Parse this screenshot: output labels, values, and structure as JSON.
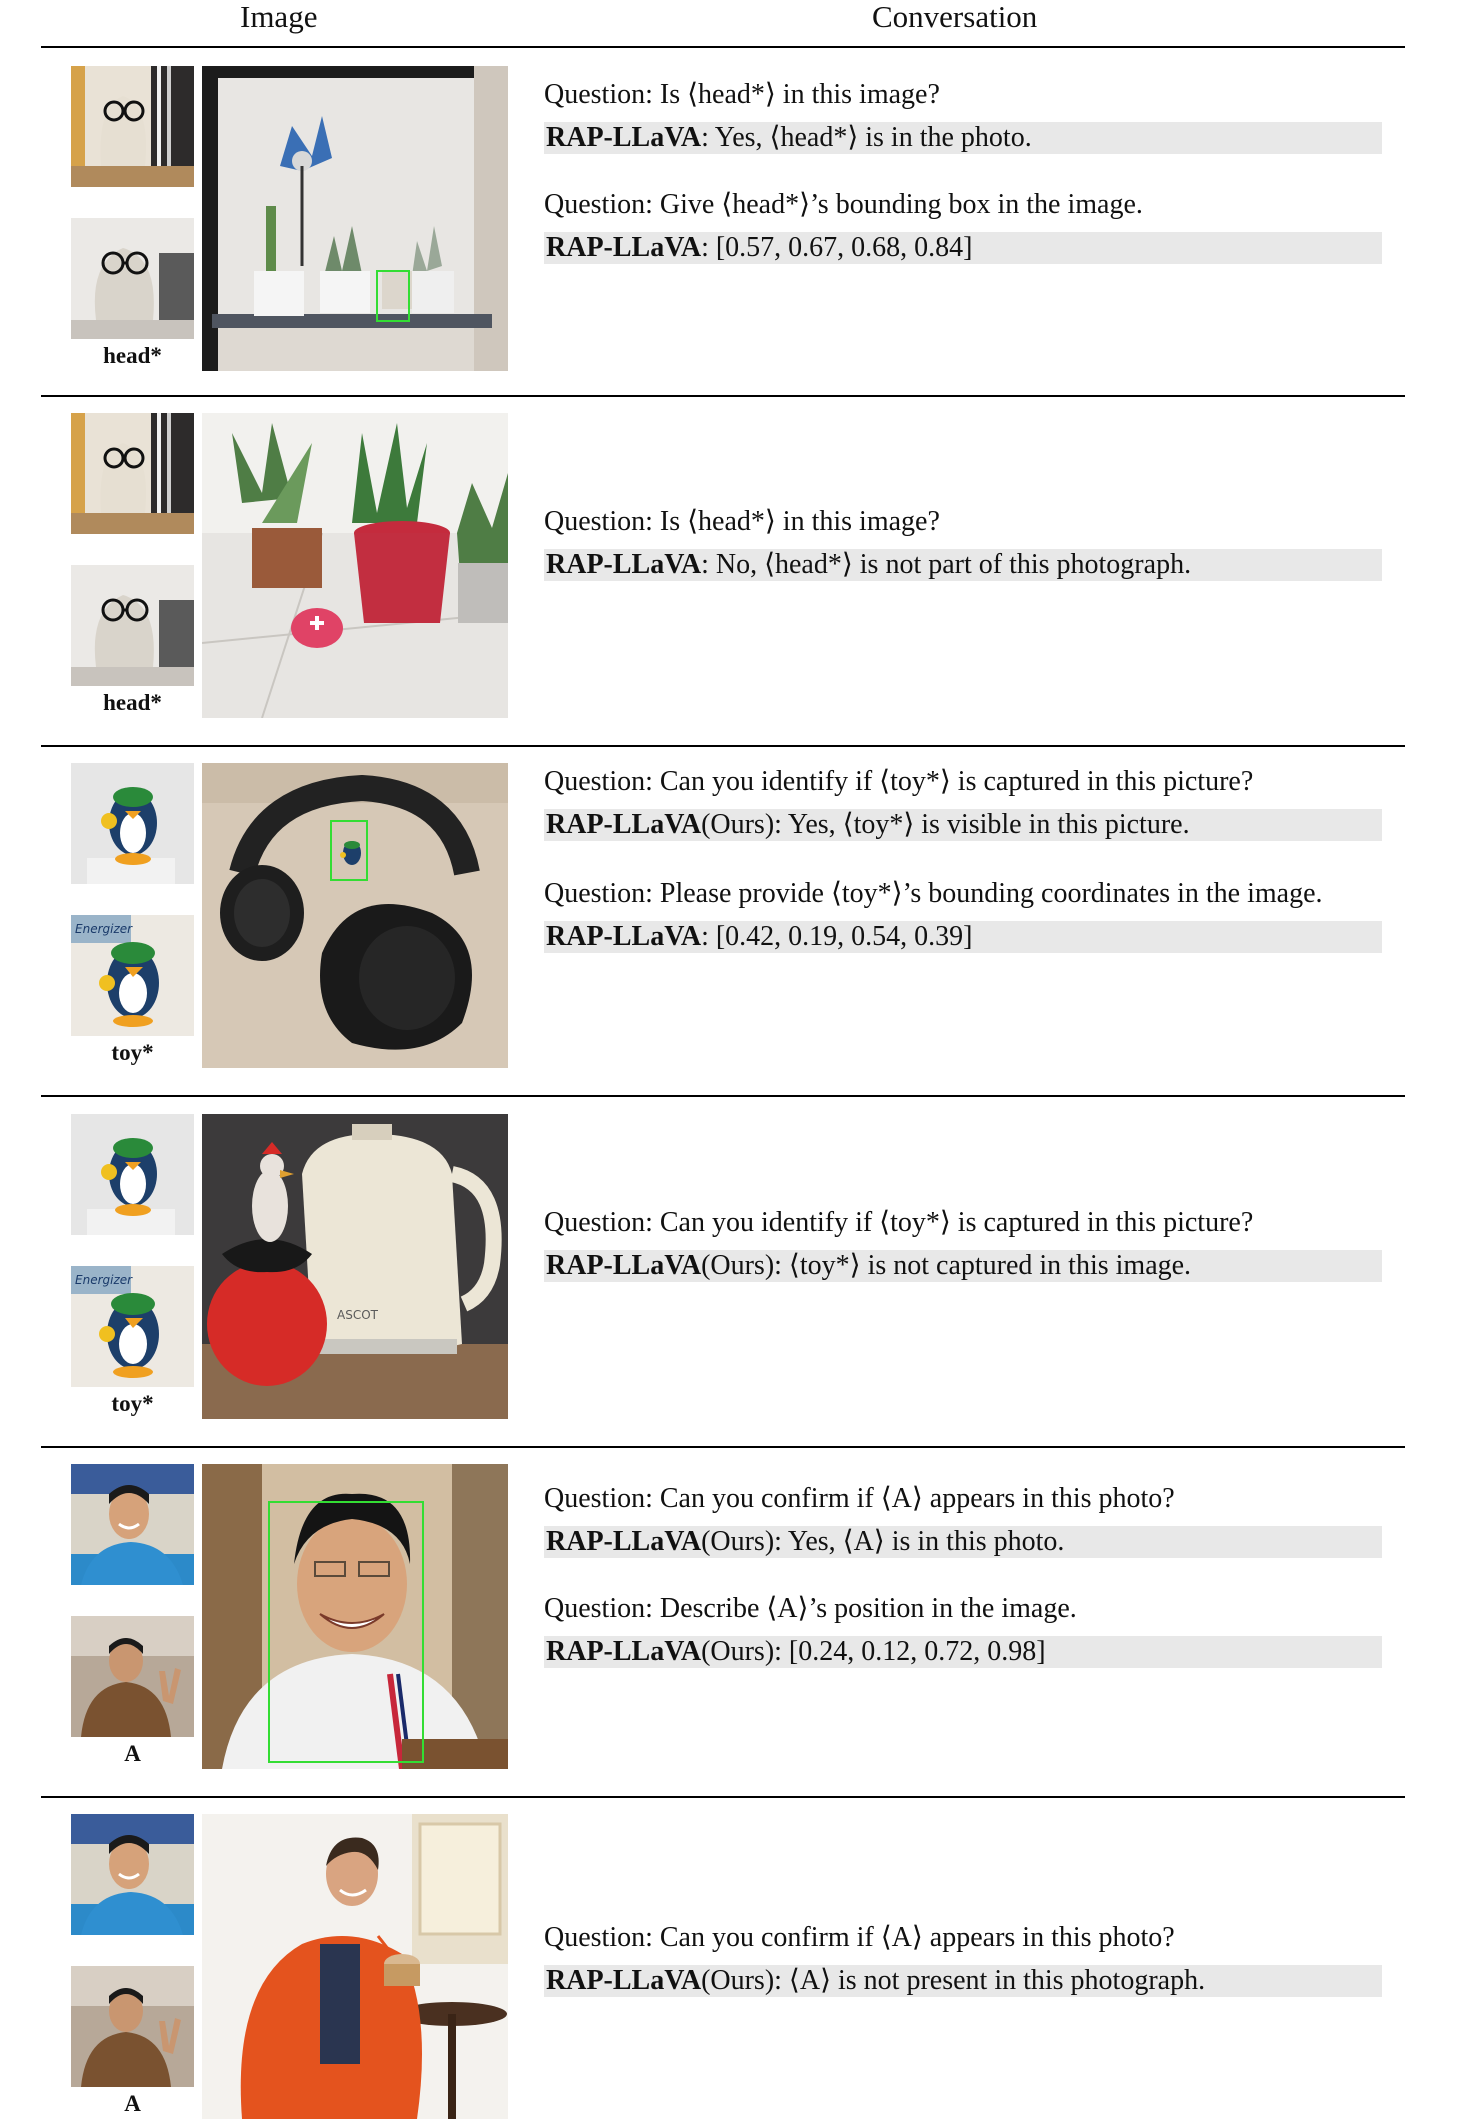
{
  "header": {
    "image": "Image",
    "conversation": "Conversation"
  },
  "rows": [
    {
      "name": "head*",
      "qa": [
        {
          "q": "Question: Is ⟨head*⟩ in this image?",
          "model": "RAP-LLaVA",
          "ours": "",
          "a": ": Yes, ⟨head*⟩ is in the photo."
        },
        {
          "q": "Question: Give ⟨head*⟩’s bounding box in the image.",
          "model": "RAP-LLaVA",
          "ours": "",
          "a": ": [0.57, 0.67, 0.68, 0.84]"
        }
      ]
    },
    {
      "name": "head*",
      "qa": [
        {
          "q": "Question: Is ⟨head*⟩ in this image?",
          "model": "RAP-LLaVA",
          "ours": "",
          "a": ": No, ⟨head*⟩ is not part of this photograph."
        }
      ]
    },
    {
      "name": "toy*",
      "qa": [
        {
          "q": "Question: Can you identify if ⟨toy*⟩ is captured in this picture?",
          "model": "RAP-LLaVA",
          "ours": "(Ours)",
          "a": ": Yes, ⟨toy*⟩ is visible in this picture."
        },
        {
          "q": "Question:  Please provide ⟨toy*⟩’s bounding coordinates in the image.",
          "model": "RAP-LLaVA",
          "ours": "",
          "a": ": [0.42, 0.19, 0.54, 0.39]"
        }
      ]
    },
    {
      "name": "toy*",
      "qa": [
        {
          "q": "Question: Can you identify if ⟨toy*⟩ is captured in this picture?",
          "model": "RAP-LLaVA",
          "ours": "(Ours)",
          "a": ": ⟨toy*⟩ is not captured in this image."
        }
      ]
    },
    {
      "name": "A",
      "qa": [
        {
          "q": "Question: Can you confirm if ⟨A⟩ appears in this photo?",
          "model": "RAP-LLaVA",
          "ours": "(Ours)",
          "a": ": Yes, ⟨A⟩ is in this photo."
        },
        {
          "q": "Question: Describe ⟨A⟩’s position in the image.",
          "model": "RAP-LLaVA",
          "ours": "(Ours)",
          "a": ": [0.24, 0.12, 0.72, 0.98]"
        }
      ]
    },
    {
      "name": "A",
      "qa": [
        {
          "q": "Question: Can you confirm if ⟨A⟩ appears in this photo?",
          "model": "RAP-LLaVA",
          "ours": "(Ours)",
          "a": ": ⟨A⟩ is not present in this photograph."
        }
      ]
    }
  ],
  "colors": {
    "bbox": "#33dd33",
    "answer_bg": "#e8e8e8",
    "rule": "#000000"
  }
}
